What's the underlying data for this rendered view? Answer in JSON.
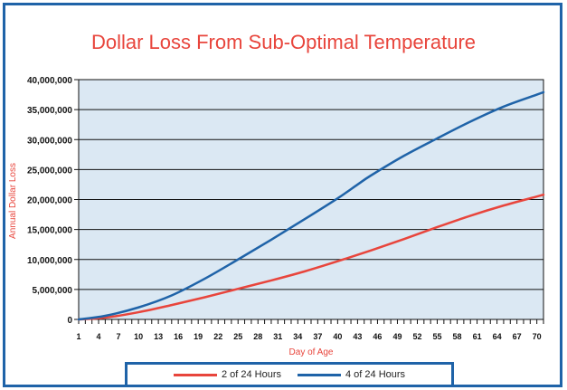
{
  "chart_data": {
    "type": "line",
    "title": "Dollar Loss From Sub-Optimal Temperature",
    "xlabel": "Day of Age",
    "ylabel": "Annual Dollar Loss",
    "x_ticks": [
      "1",
      "4",
      "7",
      "10",
      "13",
      "16",
      "19",
      "22",
      "25",
      "28",
      "31",
      "34",
      "37",
      "40",
      "43",
      "46",
      "49",
      "52",
      "55",
      "58",
      "61",
      "64",
      "67",
      "70"
    ],
    "y_ticks": [
      "0",
      "5,000,000",
      "10,000,000",
      "15,000,000",
      "20,000,000",
      "25,000,000",
      "30,000,000",
      "35,000,000",
      "40,000,000"
    ],
    "xlim": [
      1,
      71
    ],
    "ylim": [
      0,
      40000000
    ],
    "grid": "horizontal",
    "legend_position": "bottom",
    "series": [
      {
        "name": "2 of 24 Hours",
        "color": "#e8453c",
        "x": [
          1,
          5,
          10,
          15,
          20,
          25,
          30,
          35,
          40,
          45,
          50,
          55,
          60,
          65,
          70,
          71
        ],
        "y": [
          0,
          300000,
          1200000,
          2400000,
          3700000,
          5100000,
          6500000,
          8000000,
          9700000,
          11500000,
          13400000,
          15400000,
          17300000,
          19000000,
          20500000,
          20800000
        ]
      },
      {
        "name": "4 of 24 Hours",
        "color": "#1f63a8",
        "x": [
          1,
          5,
          10,
          15,
          20,
          25,
          30,
          35,
          40,
          43,
          45,
          50,
          55,
          60,
          65,
          70,
          71
        ],
        "y": [
          0,
          600000,
          2000000,
          4000000,
          6800000,
          10000000,
          13300000,
          16700000,
          20200000,
          22500000,
          24000000,
          27300000,
          30200000,
          33000000,
          35500000,
          37500000,
          37900000
        ]
      }
    ]
  }
}
